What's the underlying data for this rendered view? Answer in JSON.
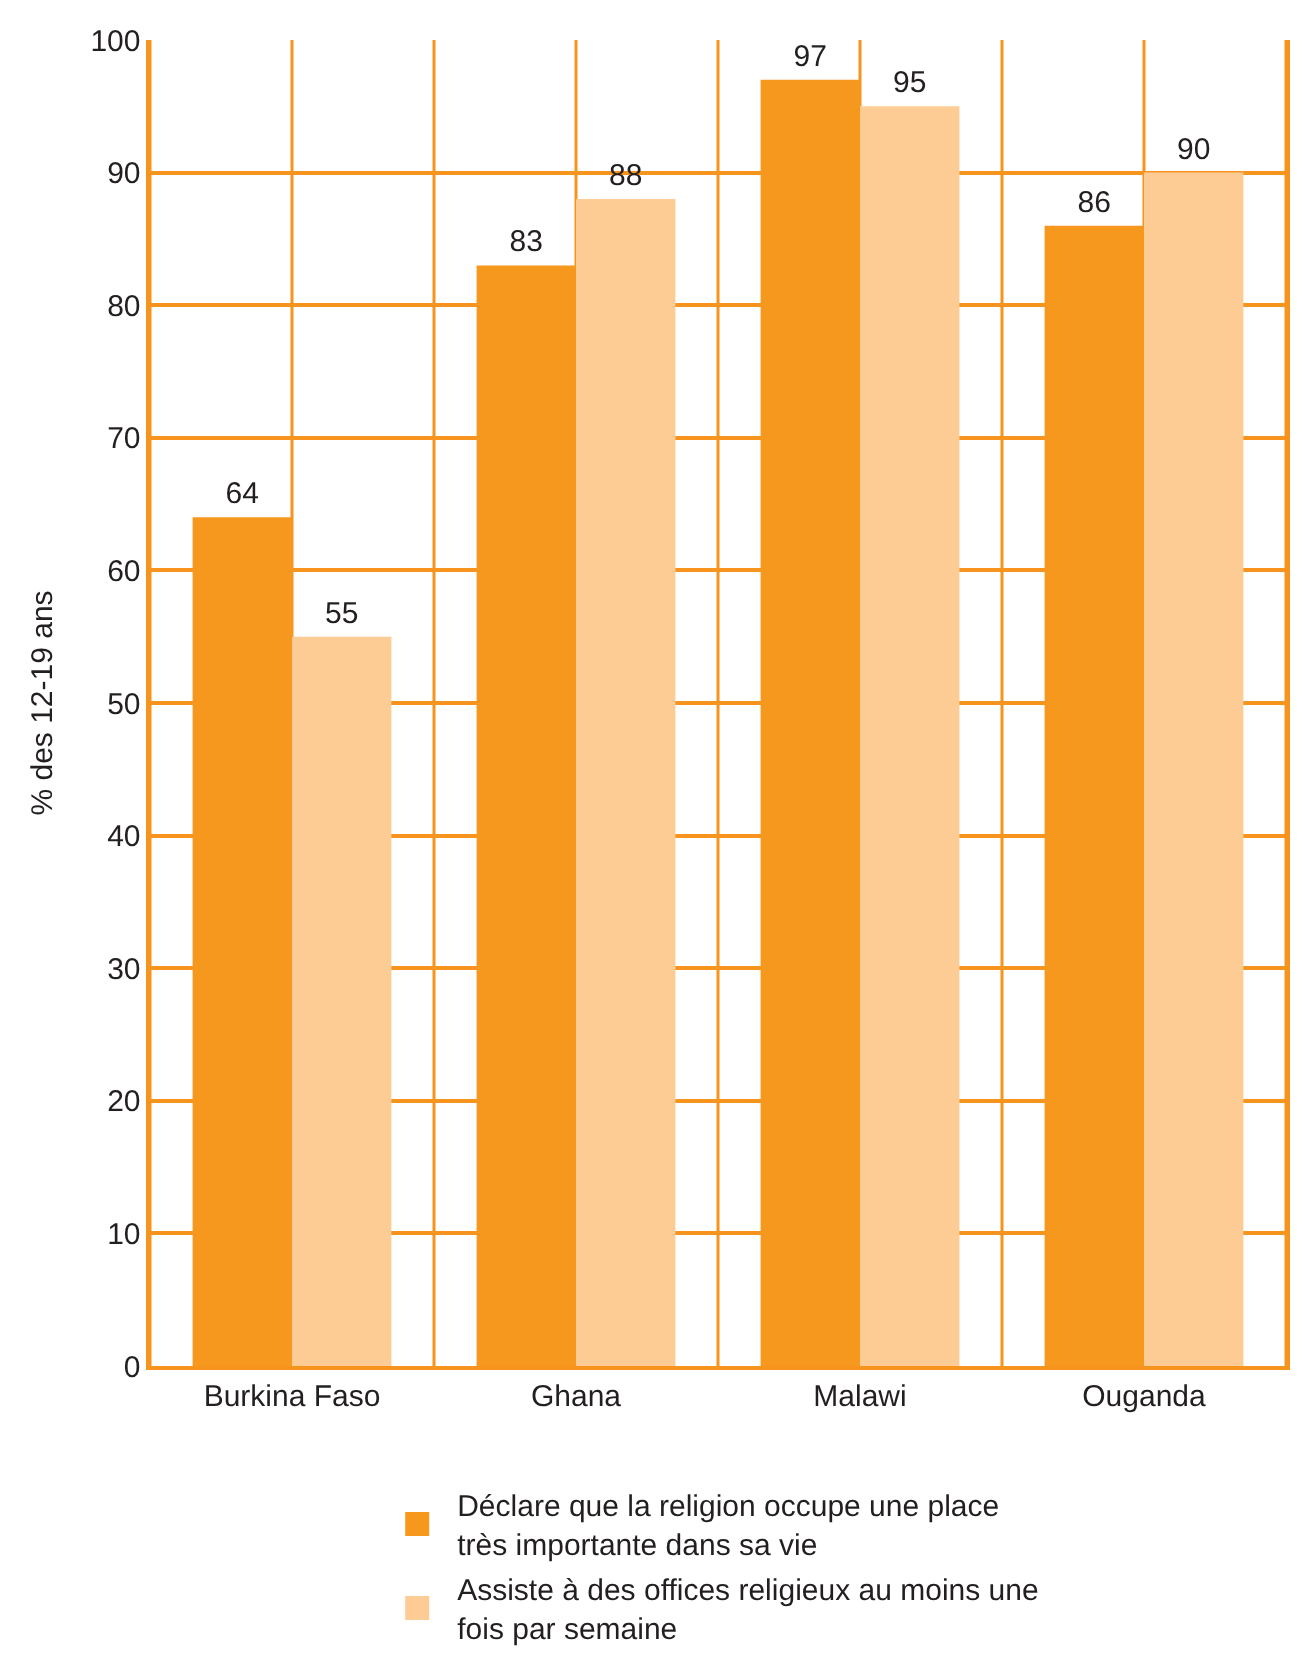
{
  "chart_data": {
    "type": "bar",
    "ylabel": "% des 12-19 ans",
    "categories": [
      "Burkina Faso",
      "Ghana",
      "Malawi",
      "Ouganda"
    ],
    "series": [
      {
        "name": "Déclare que la religion occupe une place très importante dans sa vie",
        "color": "#f7981e",
        "values": [
          64,
          83,
          97,
          86
        ]
      },
      {
        "name": "Assiste à des offices religieux au moins une fois par semaine",
        "color": "#fdcc94",
        "values": [
          55,
          88,
          95,
          90
        ]
      }
    ],
    "ylim": [
      0,
      100
    ],
    "yticks": [
      0,
      10,
      20,
      30,
      40,
      50,
      60,
      70,
      80,
      90,
      100
    ],
    "grid": true,
    "legend": "bottom",
    "data_labels": true
  }
}
